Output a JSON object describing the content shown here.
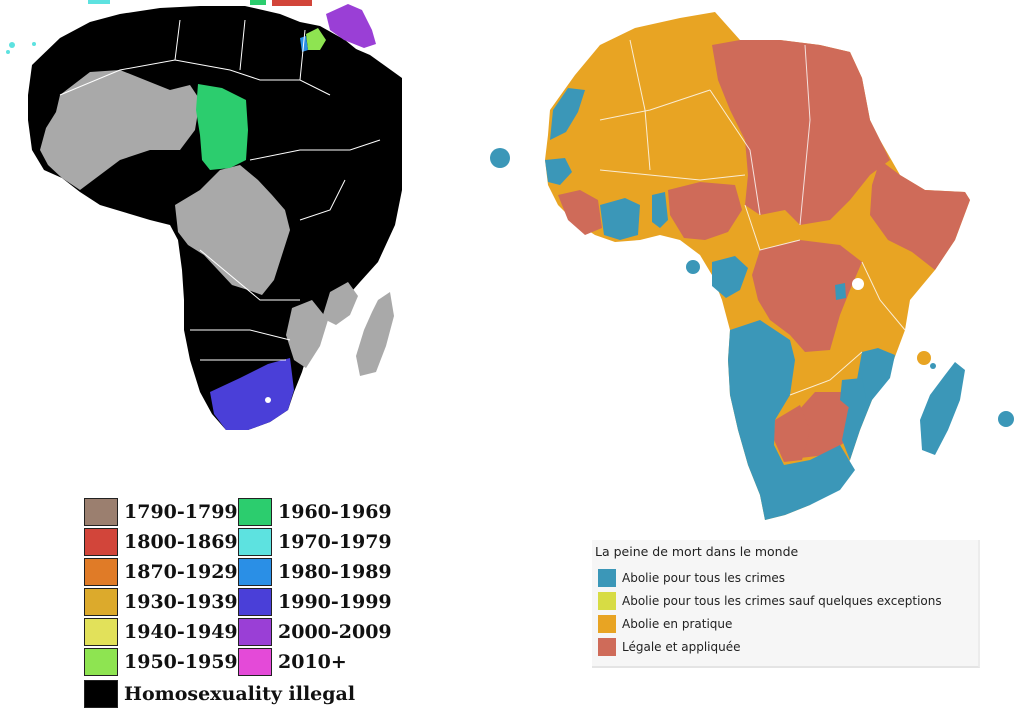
{
  "left_legend": {
    "items": [
      {
        "label": "1790-1799",
        "color": "#9b7f6f"
      },
      {
        "label": "1800-1869",
        "color": "#d2453a"
      },
      {
        "label": "1870-1929",
        "color": "#e07b27"
      },
      {
        "label": "1930-1939",
        "color": "#dcaa2c"
      },
      {
        "label": "1940-1949",
        "color": "#e2e15a"
      },
      {
        "label": "1950-1959",
        "color": "#8ee451"
      },
      {
        "label": "1960-1969",
        "color": "#2ccd6e"
      },
      {
        "label": "1970-1979",
        "color": "#5de2e0"
      },
      {
        "label": "1980-1989",
        "color": "#2a8fe6"
      },
      {
        "label": "1990-1999",
        "color": "#4a3fd8"
      },
      {
        "label": "2000-2009",
        "color": "#9a3fd6"
      },
      {
        "label": "2010+",
        "color": "#e44ad8"
      },
      {
        "label": "Homosexuality illegal",
        "color": "#000000"
      }
    ]
  },
  "right_legend": {
    "title": "La peine de mort dans le monde",
    "items": [
      {
        "label": "Abolie pour tous les crimes",
        "color": "#3b97b8"
      },
      {
        "label": "Abolie pour tous les crimes sauf quelques exceptions",
        "color": "#d7dc44"
      },
      {
        "label": "Abolie en pratique",
        "color": "#e8a423"
      },
      {
        "label": "Légale et appliquée",
        "color": "#cf6b59"
      }
    ]
  },
  "colors": {
    "illegal": "#000000",
    "no_data": "#a9a9a9",
    "decade_1960s": "#2ccd6e",
    "decade_1990s": "#4a3fd8",
    "decade_2000s": "#9a3fd6",
    "abolished": "#3b97b8",
    "abolished_in_practice": "#e8a423",
    "legal": "#cf6b59"
  }
}
